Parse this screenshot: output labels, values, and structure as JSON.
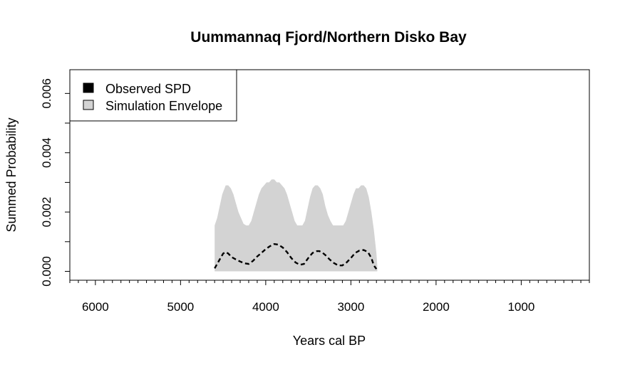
{
  "chart_data": {
    "type": "area",
    "title": "Uummannaq Fjord/Northern Disko Bay",
    "xlabel": "Years cal BP",
    "ylabel": "Summed Probability",
    "xlim": [
      6300,
      200
    ],
    "ylim": [
      -0.0003,
      0.0068
    ],
    "x_reversed": true,
    "x_ticks": [
      6000,
      5000,
      4000,
      3000,
      2000,
      1000
    ],
    "x_tick_labels": [
      "6000",
      "5000",
      "4000",
      "3000",
      "2000",
      "1000"
    ],
    "x_minor_step": 100,
    "y_ticks": [
      0.0,
      0.001,
      0.002,
      0.003,
      0.004,
      0.005,
      0.006
    ],
    "y_tick_labels": [
      "0.000",
      "",
      "0.002",
      "",
      "0.004",
      "",
      "0.006"
    ],
    "grid": false,
    "legend": {
      "position": "top-left",
      "entries": [
        {
          "label": "Observed SPD",
          "color": "#000000"
        },
        {
          "label": "Simulation Envelope",
          "color": "#d3d3d3"
        }
      ]
    },
    "series": [
      {
        "name": "Simulation Envelope",
        "color": "#d3d3d3",
        "x": [
          4600,
          4570,
          4540,
          4510,
          4470,
          4440,
          4410,
          4380,
          4350,
          4320,
          4290,
          4260,
          4230,
          4200,
          4170,
          4140,
          4110,
          4080,
          4050,
          4020,
          3990,
          3960,
          3930,
          3900,
          3870,
          3840,
          3810,
          3780,
          3750,
          3720,
          3690,
          3660,
          3630,
          3600,
          3570,
          3540,
          3510,
          3480,
          3450,
          3420,
          3390,
          3360,
          3330,
          3300,
          3270,
          3240,
          3210,
          3180,
          3150,
          3120,
          3090,
          3060,
          3030,
          3000,
          2970,
          2940,
          2910,
          2880,
          2850,
          2820,
          2790,
          2760,
          2730,
          2700,
          2690
        ],
        "upper": [
          0.00155,
          0.0018,
          0.0022,
          0.0026,
          0.0029,
          0.0029,
          0.0028,
          0.0026,
          0.0023,
          0.002,
          0.0018,
          0.0016,
          0.00155,
          0.00155,
          0.0017,
          0.002,
          0.0023,
          0.0026,
          0.0028,
          0.0029,
          0.003,
          0.003,
          0.0031,
          0.0031,
          0.003,
          0.003,
          0.0029,
          0.0028,
          0.0026,
          0.0023,
          0.002,
          0.0017,
          0.00155,
          0.00155,
          0.00155,
          0.0017,
          0.0021,
          0.0025,
          0.0028,
          0.0029,
          0.0029,
          0.0028,
          0.0026,
          0.0022,
          0.0019,
          0.0017,
          0.00155,
          0.00155,
          0.00155,
          0.00155,
          0.00155,
          0.0017,
          0.002,
          0.0023,
          0.0026,
          0.0028,
          0.0028,
          0.0029,
          0.0029,
          0.0028,
          0.0025,
          0.002,
          0.0014,
          0.0006,
          0.0002
        ],
        "lower": [
          0.0,
          0.0,
          0.0,
          0.0,
          0.0,
          0.0,
          0.0,
          0.0,
          0.0,
          0.0,
          0.0,
          0.0,
          0.0,
          0.0,
          0.0,
          0.0,
          0.0,
          0.0,
          0.0,
          0.0,
          0.0,
          0.0,
          0.0,
          0.0,
          0.0,
          0.0,
          0.0,
          0.0,
          0.0,
          0.0,
          0.0,
          0.0,
          0.0,
          0.0,
          0.0,
          0.0,
          0.0,
          0.0,
          0.0,
          0.0,
          0.0,
          0.0,
          0.0,
          0.0,
          0.0,
          0.0,
          0.0,
          0.0,
          0.0,
          0.0,
          0.0,
          0.0,
          0.0,
          0.0,
          0.0,
          0.0,
          0.0,
          0.0,
          0.0,
          0.0,
          0.0,
          0.0,
          0.0,
          0.0,
          0.0
        ]
      },
      {
        "name": "Observed SPD",
        "color": "#000000",
        "line_style": "dashed",
        "x": [
          4600,
          4550,
          4500,
          4470,
          4440,
          4400,
          4350,
          4300,
          4250,
          4200,
          4150,
          4100,
          4050,
          4000,
          3950,
          3900,
          3850,
          3800,
          3750,
          3700,
          3650,
          3600,
          3550,
          3500,
          3450,
          3400,
          3370,
          3330,
          3300,
          3250,
          3200,
          3150,
          3100,
          3050,
          3000,
          2950,
          2900,
          2850,
          2800,
          2760,
          2730,
          2700
        ],
        "y": [
          0.0001,
          0.00035,
          0.0006,
          0.00065,
          0.0006,
          0.00048,
          0.0004,
          0.00033,
          0.00027,
          0.00025,
          0.00035,
          0.0005,
          0.00062,
          0.00075,
          0.00085,
          0.00092,
          0.0009,
          0.0008,
          0.00065,
          0.00045,
          0.0003,
          0.00022,
          0.00025,
          0.00045,
          0.00062,
          0.00068,
          0.00068,
          0.00062,
          0.00055,
          0.0004,
          0.00028,
          0.0002,
          0.0002,
          0.0003,
          0.00045,
          0.00062,
          0.0007,
          0.00072,
          0.00065,
          0.00045,
          0.0002,
          8e-05
        ]
      }
    ]
  }
}
